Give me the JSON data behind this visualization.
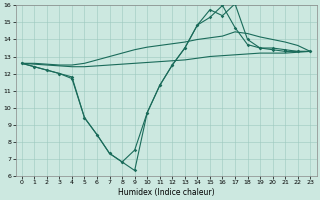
{
  "xlabel": "Humidex (Indice chaleur)",
  "xlim": [
    -0.5,
    23.5
  ],
  "ylim": [
    6,
    16
  ],
  "xticks": [
    0,
    1,
    2,
    3,
    4,
    5,
    6,
    7,
    8,
    9,
    10,
    11,
    12,
    13,
    14,
    15,
    16,
    17,
    18,
    19,
    20,
    21,
    22,
    23
  ],
  "yticks": [
    6,
    7,
    8,
    9,
    10,
    11,
    12,
    13,
    14,
    15,
    16
  ],
  "bg_color": "#cce8e0",
  "line_color": "#1a6b5a",
  "line1_x": [
    0,
    1,
    2,
    3,
    4,
    5,
    6,
    7,
    8,
    9,
    10,
    11,
    12,
    13,
    14,
    15,
    16,
    17,
    18,
    19,
    20,
    21,
    22,
    23
  ],
  "line1_y": [
    12.6,
    12.55,
    12.5,
    12.45,
    12.4,
    12.4,
    12.45,
    12.5,
    12.55,
    12.6,
    12.65,
    12.7,
    12.75,
    12.8,
    12.9,
    13.0,
    13.05,
    13.1,
    13.15,
    13.2,
    13.2,
    13.2,
    13.25,
    13.3
  ],
  "line2_x": [
    0,
    1,
    2,
    3,
    4,
    5,
    6,
    7,
    8,
    9,
    10,
    11,
    12,
    13,
    14,
    15,
    16,
    17,
    18,
    19,
    20,
    21,
    22,
    23
  ],
  "line2_y": [
    12.6,
    12.6,
    12.55,
    12.5,
    12.5,
    12.6,
    12.8,
    13.0,
    13.2,
    13.4,
    13.55,
    13.65,
    13.75,
    13.85,
    14.0,
    14.1,
    14.2,
    14.45,
    14.35,
    14.15,
    14.0,
    13.85,
    13.65,
    13.3
  ],
  "line3_x": [
    0,
    1,
    2,
    3,
    4,
    5,
    6,
    7,
    8,
    9,
    10,
    11,
    12,
    13,
    14,
    15,
    16,
    17,
    18,
    19,
    20,
    21,
    22,
    23
  ],
  "line3_y": [
    12.6,
    12.4,
    12.2,
    12.0,
    11.8,
    9.4,
    8.4,
    7.3,
    6.8,
    7.5,
    9.7,
    11.3,
    12.5,
    13.5,
    14.85,
    15.3,
    16.0,
    14.7,
    13.7,
    13.5,
    13.5,
    13.4,
    13.3,
    13.3
  ],
  "line4_x": [
    0,
    1,
    2,
    3,
    4,
    5,
    6,
    7,
    8,
    9,
    10,
    11,
    12,
    13,
    14,
    15,
    16,
    17,
    18,
    19,
    20,
    21,
    22,
    23
  ],
  "line4_y": [
    12.6,
    12.4,
    12.2,
    12.0,
    11.7,
    9.4,
    8.4,
    7.3,
    6.8,
    6.3,
    9.7,
    11.3,
    12.5,
    13.5,
    14.85,
    15.75,
    15.4,
    16.1,
    14.0,
    13.5,
    13.4,
    13.3,
    13.3,
    13.3
  ]
}
